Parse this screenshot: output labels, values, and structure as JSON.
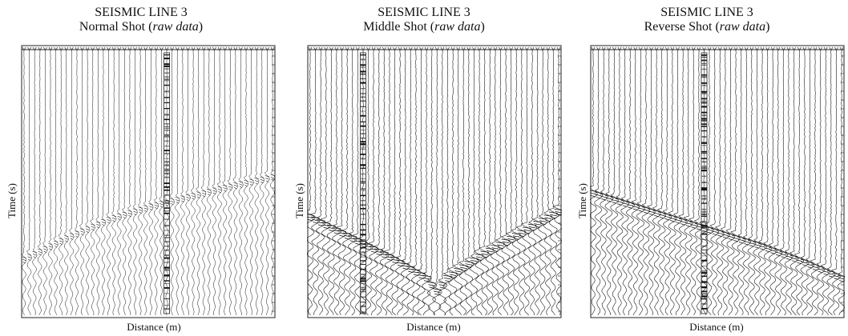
{
  "chart_data": [
    {
      "type": "scatter",
      "title": "SEISMIC LINE 3",
      "subtitle_prefix": "Normal Shot (",
      "subtitle_italic": "raw data",
      "subtitle_suffix": ")",
      "xlabel": "Distance (m)",
      "ylabel": "Time (s)",
      "grid": false,
      "traces": 48,
      "first_arrival_picks": [
        {
          "trace": 0,
          "time": 0.78
        },
        {
          "trace": 8,
          "time": 0.7
        },
        {
          "trace": 16,
          "time": 0.63
        },
        {
          "trace": 24,
          "time": 0.58
        },
        {
          "trace": 32,
          "time": 0.54
        },
        {
          "trace": 40,
          "time": 0.5
        },
        {
          "trace": 47,
          "time": 0.47
        }
      ]
    },
    {
      "type": "scatter",
      "title": "SEISMIC LINE 3",
      "subtitle_prefix": "Middle Shot (",
      "subtitle_italic": "raw data",
      "subtitle_suffix": ")",
      "xlabel": "Distance (m)",
      "ylabel": "Time (s)",
      "grid": false,
      "traces": 48,
      "first_arrival_picks": [
        {
          "trace": 0,
          "time": 0.62
        },
        {
          "trace": 8,
          "time": 0.7
        },
        {
          "trace": 16,
          "time": 0.78
        },
        {
          "trace": 22,
          "time": 0.85
        },
        {
          "trace": 24,
          "time": 0.9
        },
        {
          "trace": 26,
          "time": 0.85
        },
        {
          "trace": 32,
          "time": 0.77
        },
        {
          "trace": 40,
          "time": 0.68
        },
        {
          "trace": 47,
          "time": 0.6
        }
      ]
    },
    {
      "type": "scatter",
      "title": "SEISMIC LINE 3",
      "subtitle_prefix": "Reverse Shot (",
      "subtitle_italic": "raw data",
      "subtitle_suffix": ")",
      "xlabel": "Distance (m)",
      "ylabel": "Time (s)",
      "grid": false,
      "traces": 48,
      "first_arrival_picks": [
        {
          "trace": 0,
          "time": 0.53
        },
        {
          "trace": 8,
          "time": 0.58
        },
        {
          "trace": 16,
          "time": 0.63
        },
        {
          "trace": 24,
          "time": 0.68
        },
        {
          "trace": 32,
          "time": 0.73
        },
        {
          "trace": 40,
          "time": 0.79
        },
        {
          "trace": 47,
          "time": 0.85
        }
      ]
    }
  ]
}
